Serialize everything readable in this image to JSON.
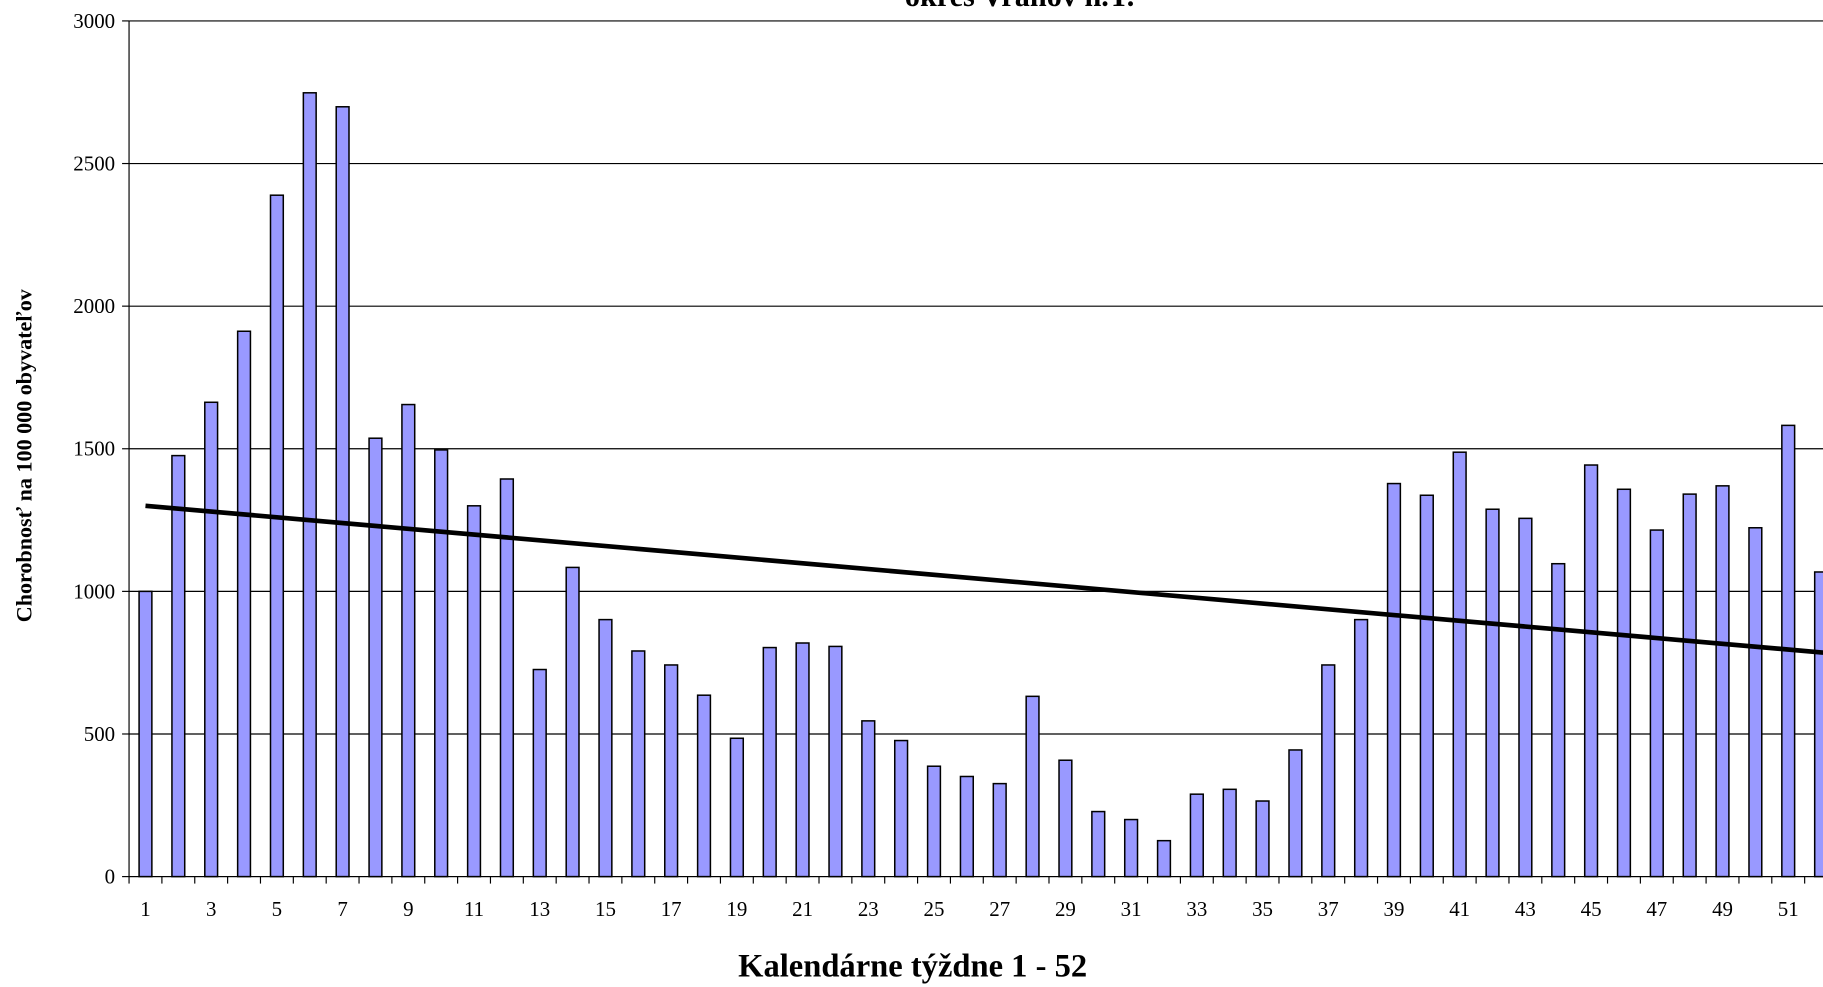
{
  "chart_data": {
    "type": "bar",
    "title": "okres Vranov n.T.",
    "x_label": "Kalendárne týždne 1 - 52",
    "y_label": "Chorobnosť na 100 000 obyvateľov",
    "categories": [
      1,
      null,
      3,
      null,
      5,
      null,
      7,
      null,
      9,
      null,
      11,
      null,
      13,
      null,
      15,
      null,
      17,
      null,
      19,
      null,
      21,
      null,
      23,
      null,
      25,
      null,
      27,
      null,
      29,
      null,
      31,
      null,
      33,
      null,
      35,
      null,
      37,
      null,
      39,
      null,
      41,
      null,
      43,
      null,
      45,
      null,
      47,
      null,
      49,
      null,
      51,
      null
    ],
    "values": [
      1000,
      1476,
      1663,
      1912,
      2389,
      2748,
      2699,
      1537,
      1655,
      1496,
      1300,
      1394,
      726,
      1084,
      901,
      791,
      742,
      636,
      485,
      803,
      819,
      807,
      546,
      477,
      387,
      351,
      326,
      632,
      408,
      228,
      200,
      126,
      289,
      306,
      265,
      444,
      742,
      901,
      1378,
      1337,
      1488,
      1288,
      1256,
      1097,
      1443,
      1358,
      1215,
      1341,
      1370,
      1223,
      1582,
      1068
    ],
    "color": "#9999ff",
    "trend": {
      "values": [
        1300,
        786
      ]
    },
    "ylim": [
      0,
      3000
    ],
    "yticks": [
      0,
      500,
      1000,
      1500,
      2000,
      2500,
      3000
    ],
    "grid": true
  }
}
